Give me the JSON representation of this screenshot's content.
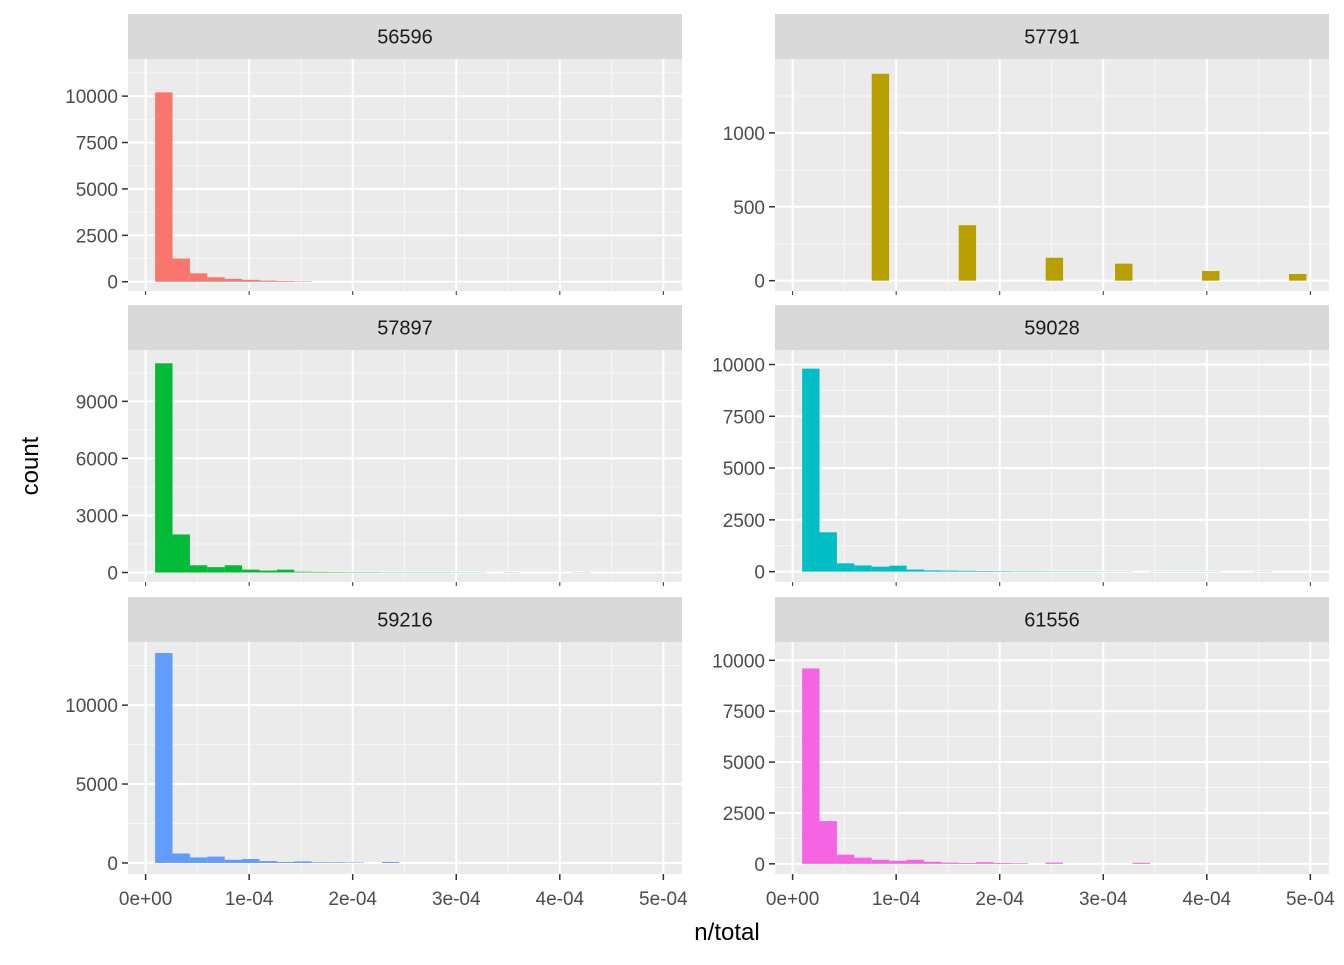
{
  "chart_data": {
    "type": "bar",
    "kind": "faceted-histogram",
    "xlabel": "n/total",
    "ylabel": "count",
    "x_ticks": [
      0,
      0.0001,
      0.0002,
      0.0003,
      0.0004,
      0.0005
    ],
    "x_tick_labels": [
      "0e+00",
      "1e-04",
      "2e-04",
      "3e-04",
      "4e-04",
      "5e-04"
    ],
    "xlim": [
      -1.7e-05,
      0.000518
    ],
    "grid": true,
    "legend": "none",
    "bin_width": 1.68e-05,
    "facets": [
      {
        "label": "56596",
        "color": "#F8766D",
        "ylim": [
          -500,
          12000
        ],
        "y_ticks": [
          0,
          2500,
          5000,
          7500,
          10000
        ],
        "bins": [
          {
            "x": 1.76e-05,
            "count": 10200
          },
          {
            "x": 3.44e-05,
            "count": 1250
          },
          {
            "x": 5.12e-05,
            "count": 450
          },
          {
            "x": 6.8e-05,
            "count": 240
          },
          {
            "x": 8.48e-05,
            "count": 150
          },
          {
            "x": 0.0001016,
            "count": 100
          },
          {
            "x": 0.0001184,
            "count": 60
          },
          {
            "x": 0.0001352,
            "count": 40
          },
          {
            "x": 0.000152,
            "count": 25
          }
        ]
      },
      {
        "label": "57791",
        "color": "#B79F00",
        "ylim": [
          -70,
          1500
        ],
        "y_ticks": [
          0,
          500,
          1000
        ],
        "bins": [
          {
            "x": 8.48e-05,
            "count": 1400
          },
          {
            "x": 0.0001688,
            "count": 375
          },
          {
            "x": 0.0002528,
            "count": 155
          },
          {
            "x": 0.0003198,
            "count": 115
          },
          {
            "x": 0.0004038,
            "count": 65
          },
          {
            "x": 0.0004878,
            "count": 45
          }
        ]
      },
      {
        "label": "57897",
        "color": "#00BA38",
        "ylim": [
          -500,
          11700
        ],
        "y_ticks": [
          0,
          3000,
          6000,
          9000
        ],
        "bins": [
          {
            "x": 1.76e-05,
            "count": 11000
          },
          {
            "x": 3.44e-05,
            "count": 2000
          },
          {
            "x": 5.12e-05,
            "count": 380
          },
          {
            "x": 6.8e-05,
            "count": 280
          },
          {
            "x": 8.48e-05,
            "count": 380
          },
          {
            "x": 0.0001016,
            "count": 150
          },
          {
            "x": 0.0001184,
            "count": 100
          },
          {
            "x": 0.0001352,
            "count": 150
          },
          {
            "x": 0.000152,
            "count": 40
          },
          {
            "x": 0.0001688,
            "count": 30
          },
          {
            "x": 0.0001856,
            "count": 25
          },
          {
            "x": 0.0002024,
            "count": 20
          },
          {
            "x": 0.0002192,
            "count": 20
          },
          {
            "x": 0.000236,
            "count": 15
          },
          {
            "x": 0.0002528,
            "count": 15
          },
          {
            "x": 0.0002696,
            "count": 15
          },
          {
            "x": 0.0002864,
            "count": 15
          },
          {
            "x": 0.0003032,
            "count": 10
          },
          {
            "x": 0.00032,
            "count": 10
          },
          {
            "x": 0.0003536,
            "count": 10
          },
          {
            "x": 0.0004208,
            "count": 10
          }
        ]
      },
      {
        "label": "59028",
        "color": "#00BFC4",
        "ylim": [
          -500,
          10700
        ],
        "y_ticks": [
          0,
          2500,
          5000,
          7500,
          10000
        ],
        "bins": [
          {
            "x": 1.76e-05,
            "count": 9800
          },
          {
            "x": 3.44e-05,
            "count": 1900
          },
          {
            "x": 5.12e-05,
            "count": 400
          },
          {
            "x": 6.8e-05,
            "count": 300
          },
          {
            "x": 8.48e-05,
            "count": 240
          },
          {
            "x": 0.0001016,
            "count": 290
          },
          {
            "x": 0.0001184,
            "count": 100
          },
          {
            "x": 0.0001352,
            "count": 60
          },
          {
            "x": 0.000152,
            "count": 50
          },
          {
            "x": 0.0001688,
            "count": 40
          },
          {
            "x": 0.0001856,
            "count": 30
          },
          {
            "x": 0.0002024,
            "count": 25
          },
          {
            "x": 0.0002192,
            "count": 20
          },
          {
            "x": 0.000236,
            "count": 20
          },
          {
            "x": 0.0002528,
            "count": 15
          },
          {
            "x": 0.0002696,
            "count": 15
          },
          {
            "x": 0.0002864,
            "count": 15
          },
          {
            "x": 0.0003032,
            "count": 10
          },
          {
            "x": 0.00032,
            "count": 10
          },
          {
            "x": 0.0003536,
            "count": 10
          },
          {
            "x": 0.0003704,
            "count": 10
          },
          {
            "x": 0.0003872,
            "count": 10
          },
          {
            "x": 0.000404,
            "count": 10
          },
          {
            "x": 0.0004544,
            "count": 10
          }
        ]
      },
      {
        "label": "59216",
        "color": "#619CFF",
        "ylim": [
          -700,
          14000
        ],
        "y_ticks": [
          0,
          5000,
          10000
        ],
        "bins": [
          {
            "x": 1.76e-05,
            "count": 13300
          },
          {
            "x": 3.44e-05,
            "count": 600
          },
          {
            "x": 5.12e-05,
            "count": 350
          },
          {
            "x": 6.8e-05,
            "count": 400
          },
          {
            "x": 8.48e-05,
            "count": 200
          },
          {
            "x": 0.0001016,
            "count": 250
          },
          {
            "x": 0.0001184,
            "count": 120
          },
          {
            "x": 0.0001352,
            "count": 60
          },
          {
            "x": 0.000152,
            "count": 100
          },
          {
            "x": 0.0001688,
            "count": 40
          },
          {
            "x": 0.0001856,
            "count": 40
          },
          {
            "x": 0.0002024,
            "count": 30
          },
          {
            "x": 0.0002366,
            "count": 60
          }
        ]
      },
      {
        "label": "61556",
        "color": "#F564E3",
        "ylim": [
          -500,
          10900
        ],
        "y_ticks": [
          0,
          2500,
          5000,
          7500,
          10000
        ],
        "bins": [
          {
            "x": 1.76e-05,
            "count": 9600
          },
          {
            "x": 3.44e-05,
            "count": 2100
          },
          {
            "x": 5.12e-05,
            "count": 450
          },
          {
            "x": 6.8e-05,
            "count": 300
          },
          {
            "x": 8.48e-05,
            "count": 200
          },
          {
            "x": 0.0001016,
            "count": 150
          },
          {
            "x": 0.0001184,
            "count": 200
          },
          {
            "x": 0.0001352,
            "count": 100
          },
          {
            "x": 0.000152,
            "count": 60
          },
          {
            "x": 0.0001688,
            "count": 40
          },
          {
            "x": 0.0001856,
            "count": 80
          },
          {
            "x": 0.0002024,
            "count": 40
          },
          {
            "x": 0.0002192,
            "count": 30
          },
          {
            "x": 0.0002528,
            "count": 60
          },
          {
            "x": 0.0003368,
            "count": 50
          }
        ]
      }
    ]
  }
}
